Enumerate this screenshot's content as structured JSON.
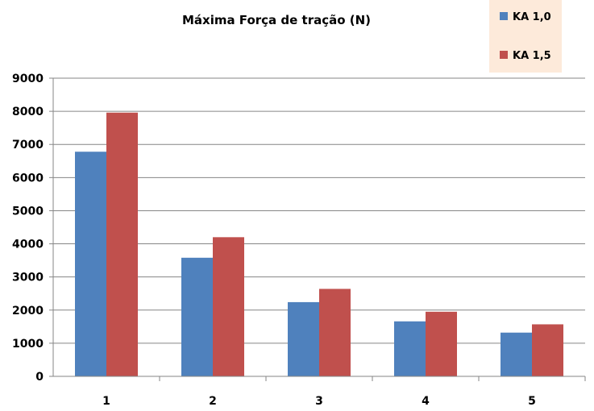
{
  "chart_data": {
    "type": "bar",
    "title": "Máxima Força de tração (N)",
    "xlabel": "",
    "ylabel": "",
    "categories": [
      "1",
      "2",
      "3",
      "4",
      "5"
    ],
    "series": [
      {
        "name": "KA 1,0",
        "color": "#4F81BD",
        "values": [
          6780,
          3580,
          2240,
          1660,
          1320
        ]
      },
      {
        "name": "KA 1,5",
        "color": "#C0504D",
        "values": [
          7960,
          4200,
          2640,
          1950,
          1570
        ]
      }
    ],
    "ylim": [
      0,
      9000
    ],
    "yticks": [
      "0",
      "1000",
      "2000",
      "3000",
      "4000",
      "5000",
      "6000",
      "7000",
      "8000",
      "9000"
    ],
    "grid": true,
    "legend": {
      "position": "top-right",
      "background": "#FDEADA"
    },
    "colors": {
      "gridline": "#868686",
      "axis": "#868686"
    }
  }
}
